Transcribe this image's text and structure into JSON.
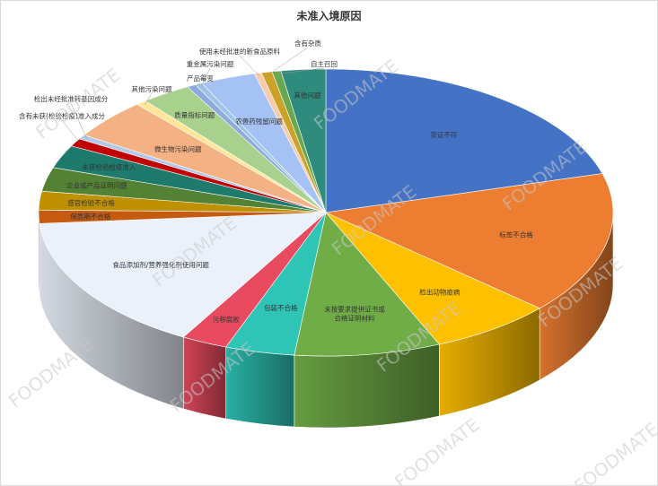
{
  "title": "未准入境原因",
  "watermark": "FOODMATE",
  "chart_data": {
    "type": "pie",
    "title": "未准入境原因",
    "start_angle_deg": -90,
    "slices": [
      {
        "label": "货证不符",
        "value": 20.6,
        "color": "#4472C4"
      },
      {
        "label": "标签不合格",
        "value": 16.0,
        "color": "#ED7D31"
      },
      {
        "label": "检出动物疫病",
        "value": 6.9,
        "color": "#FFC000"
      },
      {
        "label": "未按要求提供证书或\n合格证明材料",
        "value": 8.2,
        "color": "#70AD47"
      },
      {
        "label": "包装不合格",
        "value": 3.9,
        "color": "#2EC4B6"
      },
      {
        "label": "污秽腐败",
        "value": 2.6,
        "color": "#E84A5F"
      },
      {
        "label": "食品添加剂/营养强化剂使用问题",
        "value": 15.5,
        "color": "#EAF1FB"
      },
      {
        "label": "保质期不合格",
        "value": 1.5,
        "color": "#C55A11"
      },
      {
        "label": "感官检验不合格",
        "value": 2.1,
        "color": "#BF9000"
      },
      {
        "label": "企业或产品证明问题",
        "value": 2.7,
        "color": "#548235"
      },
      {
        "label": "未获检验检疫准入",
        "value": 2.6,
        "color": "#1F7A6E"
      },
      {
        "label": "含有未获(检验检疫)准入成分",
        "value": 0.9,
        "color": "#C00000"
      },
      {
        "label": "检出未经批准转基因成分",
        "value": 0.5,
        "color": "#B4C7E7"
      },
      {
        "label": "微生物污染问题",
        "value": 4.5,
        "color": "#F4B183"
      },
      {
        "label": "其他污染问题",
        "value": 0.6,
        "color": "#FFE699"
      },
      {
        "label": "质量指标问题",
        "value": 2.8,
        "color": "#A9D18E"
      },
      {
        "label": "产品霉变",
        "value": 0.5,
        "color": "#8FAADC"
      },
      {
        "label": "重金属污染问题",
        "value": 0.4,
        "color": "#9DC3E6"
      },
      {
        "label": "农兽药残留问题",
        "value": 3.1,
        "color": "#A4C2F4"
      },
      {
        "label": "使用未经批准的新食品原料",
        "value": 0.4,
        "color": "#F8CBAD"
      },
      {
        "label": "含有杂质",
        "value": 0.6,
        "color": "#C9A227"
      },
      {
        "label": "自主召回",
        "value": 0.5,
        "color": "#6AA84F"
      },
      {
        "label": "其他问题",
        "value": 2.5,
        "color": "#2E8B7E"
      }
    ]
  }
}
